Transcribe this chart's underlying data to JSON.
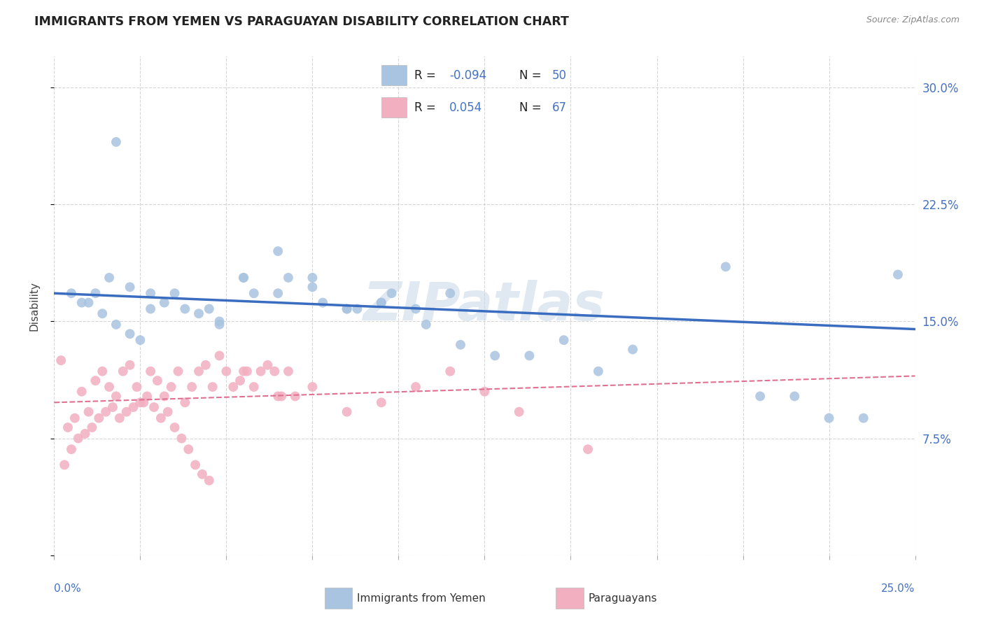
{
  "title": "IMMIGRANTS FROM YEMEN VS PARAGUAYAN DISABILITY CORRELATION CHART",
  "source": "Source: ZipAtlas.com",
  "ylabel": "Disability",
  "xlim": [
    0.0,
    0.25
  ],
  "ylim": [
    0.0,
    0.32
  ],
  "yticks": [
    0.0,
    0.075,
    0.15,
    0.225,
    0.3
  ],
  "ytick_labels": [
    "",
    "7.5%",
    "15.0%",
    "22.5%",
    "30.0%"
  ],
  "xtick_labels": [
    "0.0%",
    "",
    "",
    "",
    "",
    "",
    "",
    "",
    "",
    "",
    "25.0%"
  ],
  "legend_label1": "Immigrants from Yemen",
  "legend_label2": "Paraguayans",
  "blue_color": "#a8c4e0",
  "pink_color": "#f2afc0",
  "blue_line_color": "#3a6dbf",
  "pink_line_color": "#e07090",
  "watermark": "ZIPatlas",
  "blue_scatter_x": [
    0.018,
    0.005,
    0.01,
    0.014,
    0.018,
    0.022,
    0.025,
    0.008,
    0.012,
    0.016,
    0.022,
    0.028,
    0.032,
    0.038,
    0.042,
    0.048,
    0.055,
    0.065,
    0.075,
    0.085,
    0.095,
    0.105,
    0.115,
    0.065,
    0.075,
    0.085,
    0.095,
    0.055,
    0.045,
    0.035,
    0.028,
    0.048,
    0.058,
    0.068,
    0.078,
    0.088,
    0.098,
    0.108,
    0.118,
    0.128,
    0.138,
    0.148,
    0.158,
    0.168,
    0.195,
    0.205,
    0.215,
    0.225,
    0.235,
    0.245
  ],
  "blue_scatter_y": [
    0.265,
    0.168,
    0.162,
    0.155,
    0.148,
    0.142,
    0.138,
    0.162,
    0.168,
    0.178,
    0.172,
    0.168,
    0.162,
    0.158,
    0.155,
    0.15,
    0.178,
    0.168,
    0.172,
    0.158,
    0.162,
    0.158,
    0.168,
    0.195,
    0.178,
    0.158,
    0.162,
    0.178,
    0.158,
    0.168,
    0.158,
    0.148,
    0.168,
    0.178,
    0.162,
    0.158,
    0.168,
    0.148,
    0.135,
    0.128,
    0.128,
    0.138,
    0.118,
    0.132,
    0.185,
    0.102,
    0.102,
    0.088,
    0.088,
    0.18
  ],
  "pink_scatter_x": [
    0.002,
    0.004,
    0.006,
    0.008,
    0.01,
    0.012,
    0.014,
    0.016,
    0.018,
    0.02,
    0.022,
    0.024,
    0.026,
    0.028,
    0.03,
    0.032,
    0.034,
    0.036,
    0.038,
    0.04,
    0.042,
    0.044,
    0.046,
    0.048,
    0.05,
    0.052,
    0.054,
    0.056,
    0.058,
    0.06,
    0.062,
    0.064,
    0.066,
    0.068,
    0.07,
    0.003,
    0.005,
    0.007,
    0.009,
    0.011,
    0.013,
    0.015,
    0.017,
    0.019,
    0.021,
    0.023,
    0.025,
    0.027,
    0.029,
    0.031,
    0.033,
    0.035,
    0.037,
    0.039,
    0.041,
    0.043,
    0.045,
    0.055,
    0.065,
    0.075,
    0.085,
    0.095,
    0.105,
    0.115,
    0.125,
    0.135,
    0.155
  ],
  "pink_scatter_y": [
    0.125,
    0.082,
    0.088,
    0.105,
    0.092,
    0.112,
    0.118,
    0.108,
    0.102,
    0.118,
    0.122,
    0.108,
    0.098,
    0.118,
    0.112,
    0.102,
    0.108,
    0.118,
    0.098,
    0.108,
    0.118,
    0.122,
    0.108,
    0.128,
    0.118,
    0.108,
    0.112,
    0.118,
    0.108,
    0.118,
    0.122,
    0.118,
    0.102,
    0.118,
    0.102,
    0.058,
    0.068,
    0.075,
    0.078,
    0.082,
    0.088,
    0.092,
    0.095,
    0.088,
    0.092,
    0.095,
    0.098,
    0.102,
    0.095,
    0.088,
    0.092,
    0.082,
    0.075,
    0.068,
    0.058,
    0.052,
    0.048,
    0.118,
    0.102,
    0.108,
    0.092,
    0.098,
    0.108,
    0.118,
    0.105,
    0.092,
    0.068
  ],
  "blue_trend_x": [
    0.0,
    0.25
  ],
  "blue_trend_y": [
    0.168,
    0.145
  ],
  "pink_trend_x": [
    0.0,
    0.25
  ],
  "pink_trend_y": [
    0.098,
    0.115
  ],
  "background_color": "#ffffff",
  "grid_color": "#bbbbbb"
}
